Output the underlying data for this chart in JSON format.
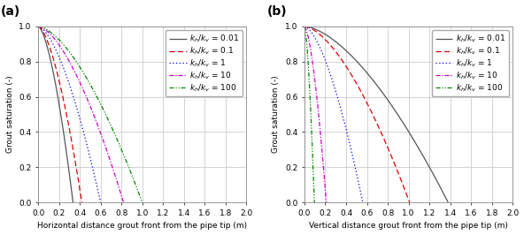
{
  "panel_a": {
    "label": "(a)",
    "xlabel": "Horizontal distance grout front from the pipe tip (m)",
    "ylabel": "Grout saturation (-)",
    "xlim": [
      0.0,
      2.0
    ],
    "ylim": [
      0.0,
      1.0
    ],
    "curves": [
      {
        "color": "#555555",
        "linestyle": "solid",
        "x_max": 0.335
      },
      {
        "color": "#e00000",
        "linestyle": "dashed",
        "x_max": 0.42
      },
      {
        "color": "#0000e0",
        "linestyle": "dotted",
        "x_max": 0.6
      },
      {
        "color": "#cc00cc",
        "linestyle": "dashdot",
        "x_max": 0.82
      },
      {
        "color": "#008800",
        "linestyle": "dashdotdot",
        "x_max": 1.0
      }
    ]
  },
  "panel_b": {
    "label": "(b)",
    "xlabel": "Vertical distance grout front from the pipe tip (m)",
    "ylabel": "Grout saturation (-)",
    "xlim": [
      0.0,
      2.0
    ],
    "ylim": [
      0.0,
      1.0
    ],
    "curves": [
      {
        "color": "#555555",
        "linestyle": "solid",
        "x_max": 1.38
      },
      {
        "color": "#e00000",
        "linestyle": "dashed",
        "x_max": 1.01
      },
      {
        "color": "#0000e0",
        "linestyle": "dotted",
        "x_max": 0.56
      },
      {
        "color": "#cc00cc",
        "linestyle": "dashdot",
        "x_max": 0.21
      },
      {
        "color": "#008800",
        "linestyle": "dashdotdot",
        "x_max": 0.095
      }
    ]
  },
  "legend_labels": [
    {
      "text": "$k_h$/$k_v$ = 0.01",
      "color": "#555555",
      "linestyle": "solid"
    },
    {
      "text": "$k_h$/$k_v$ = 0.1",
      "color": "#e00000",
      "linestyle": "dashed"
    },
    {
      "text": "$k_h$/$k_v$ = 1",
      "color": "#0000e0",
      "linestyle": "dotted"
    },
    {
      "text": "$k_h$/$k_v$ = 10",
      "color": "#cc00cc",
      "linestyle": "dashdot"
    },
    {
      "text": "$k_h$/$k_v$ = 100",
      "color": "#008800",
      "linestyle": "dashdotdot"
    }
  ],
  "panel_label_fontsize": 10,
  "label_fontsize": 6.5,
  "tick_fontsize": 6.5,
  "legend_fontsize": 6.5,
  "curve_power": 1.6,
  "background_color": "#ffffff",
  "grid_color": "#cccccc"
}
